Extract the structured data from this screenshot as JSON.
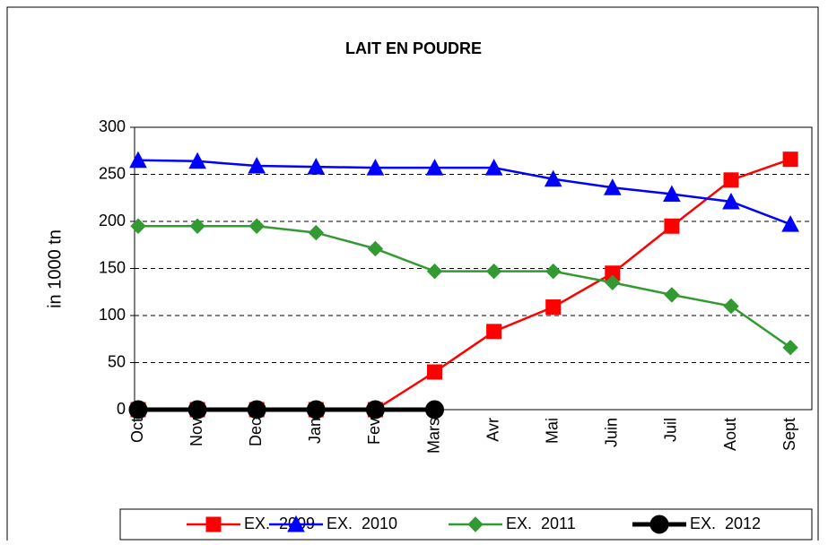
{
  "chart_data": {
    "type": "line",
    "title": "LAIT EN POUDRE",
    "y_label": "in 1000 tn",
    "categories": [
      "Oct",
      "Nov",
      "Dec",
      "Jan",
      "Fev",
      "Mars",
      "Avr",
      "Mai",
      "Juin",
      "Juil",
      "Aout",
      "Sept"
    ],
    "series": [
      {
        "name": "EX.  2009",
        "color": "#ff0000",
        "marker": "square",
        "values": [
          0,
          0,
          0,
          0,
          0,
          40,
          83,
          109,
          145,
          195,
          244,
          266
        ]
      },
      {
        "name": "EX.  2010",
        "color": "#0000ff",
        "marker": "triangle",
        "values": [
          265,
          264,
          259,
          258,
          257,
          257,
          257,
          245,
          236,
          229,
          221,
          197
        ]
      },
      {
        "name": "EX.  2011",
        "color": "#339933",
        "marker": "diamond",
        "values": [
          195,
          195,
          195,
          188,
          171,
          147,
          147,
          147,
          135,
          122,
          110,
          66
        ]
      },
      {
        "name": "EX.  2012",
        "color": "#000000",
        "marker": "circle",
        "values": [
          0,
          0,
          0,
          0,
          0,
          0,
          null,
          null,
          null,
          null,
          null,
          null
        ]
      }
    ],
    "ylim": [
      0,
      300
    ],
    "yticks": [
      0,
      50,
      100,
      150,
      200,
      250,
      300
    ],
    "grid": true,
    "legend": "bottom"
  }
}
